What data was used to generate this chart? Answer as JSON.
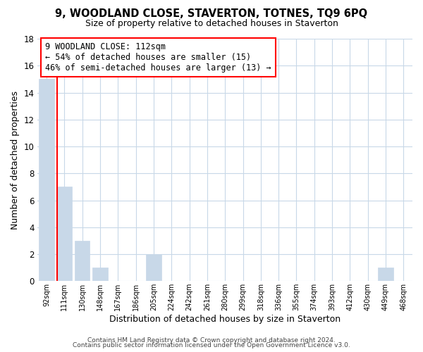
{
  "title": "9, WOODLAND CLOSE, STAVERTON, TOTNES, TQ9 6PQ",
  "subtitle": "Size of property relative to detached houses in Staverton",
  "xlabel": "Distribution of detached houses by size in Staverton",
  "ylabel": "Number of detached properties",
  "bar_labels": [
    "92sqm",
    "111sqm",
    "130sqm",
    "148sqm",
    "167sqm",
    "186sqm",
    "205sqm",
    "224sqm",
    "242sqm",
    "261sqm",
    "280sqm",
    "299sqm",
    "318sqm",
    "336sqm",
    "355sqm",
    "374sqm",
    "393sqm",
    "412sqm",
    "430sqm",
    "449sqm",
    "468sqm"
  ],
  "bar_values": [
    15,
    7,
    3,
    1,
    0,
    0,
    2,
    0,
    0,
    0,
    0,
    0,
    0,
    0,
    0,
    0,
    0,
    0,
    0,
    1,
    0
  ],
  "bar_color": "#c8d8e8",
  "red_line_bin": 1,
  "annotation_title": "9 WOODLAND CLOSE: 112sqm",
  "annotation_line1": "← 54% of detached houses are smaller (15)",
  "annotation_line2": "46% of semi-detached houses are larger (13) →",
  "ylim": [
    0,
    18
  ],
  "yticks": [
    0,
    2,
    4,
    6,
    8,
    10,
    12,
    14,
    16,
    18
  ],
  "footer1": "Contains HM Land Registry data © Crown copyright and database right 2024.",
  "footer2": "Contains public sector information licensed under the Open Government Licence v3.0."
}
